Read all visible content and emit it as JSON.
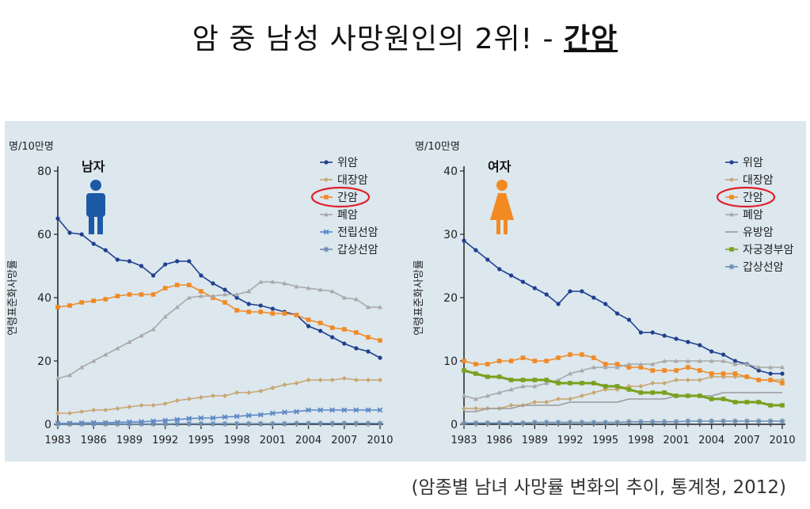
{
  "slide": {
    "title_prefix": "암 중 남성 사망원인의 2위! - ",
    "title_highlight": "간암",
    "source": "(암종별 남녀 사망률 변화의 추이, 통계청, 2012)"
  },
  "chart_data": [
    {
      "type": "line",
      "title": "남자",
      "unit_label": "명/10만명",
      "ylabel": "연령표준화사망률",
      "ylim": [
        0,
        80
      ],
      "yticks": [
        0,
        20,
        40,
        60,
        80
      ],
      "xlim": [
        1983,
        2010
      ],
      "xticks": [
        1983,
        1986,
        1989,
        1992,
        1995,
        1998,
        2001,
        2004,
        2007,
        2010
      ],
      "legend_position": "top-right",
      "highlight": "간암",
      "series": [
        {
          "name": "위암",
          "color": "#1f3f8f",
          "marker": "circle",
          "x": [
            1983,
            1984,
            1985,
            1986,
            1987,
            1988,
            1989,
            1990,
            1991,
            1992,
            1993,
            1994,
            1995,
            1996,
            1997,
            1998,
            1999,
            2000,
            2001,
            2002,
            2003,
            2004,
            2005,
            2006,
            2007,
            2008,
            2009,
            2010
          ],
          "values": [
            65,
            60.5,
            60,
            57,
            55,
            52,
            51.5,
            50,
            47,
            50.5,
            51.5,
            51.5,
            47,
            44.5,
            42.5,
            40,
            38,
            37.5,
            36.5,
            35.5,
            34.5,
            31,
            29.5,
            27.5,
            25.5,
            24,
            23,
            21
          ]
        },
        {
          "name": "대장암",
          "color": "#c8a670",
          "marker": "diamond",
          "x": [
            1983,
            1984,
            1985,
            1986,
            1987,
            1988,
            1989,
            1990,
            1991,
            1992,
            1993,
            1994,
            1995,
            1996,
            1997,
            1998,
            1999,
            2000,
            2001,
            2002,
            2003,
            2004,
            2005,
            2006,
            2007,
            2008,
            2009,
            2010
          ],
          "values": [
            3.5,
            3.5,
            4,
            4.5,
            4.5,
            5,
            5.5,
            6,
            6,
            6.5,
            7.5,
            8,
            8.5,
            9,
            9,
            10,
            10,
            10.5,
            11.5,
            12.5,
            13,
            14,
            14,
            14,
            14.5,
            14,
            14,
            14
          ]
        },
        {
          "name": "간암",
          "color": "#f08a24",
          "marker": "square",
          "x": [
            1983,
            1984,
            1985,
            1986,
            1987,
            1988,
            1989,
            1990,
            1991,
            1992,
            1993,
            1994,
            1995,
            1996,
            1997,
            1998,
            1999,
            2000,
            2001,
            2002,
            2003,
            2004,
            2005,
            2006,
            2007,
            2008,
            2009,
            2010
          ],
          "values": [
            37,
            37.5,
            38.5,
            39,
            39.5,
            40.5,
            41,
            41,
            41,
            43,
            44,
            44,
            42,
            40,
            38.5,
            36,
            35.5,
            35.5,
            35,
            35,
            34.5,
            33,
            32,
            30.5,
            30,
            29,
            27.5,
            26.5
          ]
        },
        {
          "name": "폐암",
          "color": "#a8a8a8",
          "marker": "triangle",
          "x": [
            1983,
            1984,
            1985,
            1986,
            1987,
            1988,
            1989,
            1990,
            1991,
            1992,
            1993,
            1994,
            1995,
            1996,
            1997,
            1998,
            1999,
            2000,
            2001,
            2002,
            2003,
            2004,
            2005,
            2006,
            2007,
            2008,
            2009,
            2010
          ],
          "values": [
            14.5,
            15.5,
            18,
            20,
            22,
            24,
            26,
            28,
            30,
            34,
            37,
            40,
            40.5,
            40.5,
            41,
            41,
            42,
            45,
            45,
            44.5,
            43.5,
            43,
            42.5,
            42,
            40,
            39.5,
            37,
            37
          ]
        },
        {
          "name": "전립선암",
          "color": "#5a86c6",
          "marker": "x",
          "x": [
            1983,
            1984,
            1985,
            1986,
            1987,
            1988,
            1989,
            1990,
            1991,
            1992,
            1993,
            1994,
            1995,
            1996,
            1997,
            1998,
            1999,
            2000,
            2001,
            2002,
            2003,
            2004,
            2005,
            2006,
            2007,
            2008,
            2009,
            2010
          ],
          "values": [
            0.3,
            0.3,
            0.4,
            0.5,
            0.5,
            0.6,
            0.7,
            0.8,
            1,
            1.2,
            1.5,
            1.8,
            2,
            2,
            2.3,
            2.5,
            2.8,
            3,
            3.5,
            3.8,
            4,
            4.5,
            4.5,
            4.5,
            4.5,
            4.5,
            4.5,
            4.5
          ]
        },
        {
          "name": "갑상선암",
          "color": "#6d8db0",
          "marker": "star",
          "x": [
            1983,
            1984,
            1985,
            1986,
            1987,
            1988,
            1989,
            1990,
            1991,
            1992,
            1993,
            1994,
            1995,
            1996,
            1997,
            1998,
            1999,
            2000,
            2001,
            2002,
            2003,
            2004,
            2005,
            2006,
            2007,
            2008,
            2009,
            2010
          ],
          "values": [
            0.1,
            0.1,
            0.1,
            0.1,
            0.1,
            0.1,
            0.1,
            0.1,
            0.1,
            0.1,
            0.2,
            0.2,
            0.2,
            0.2,
            0.2,
            0.2,
            0.2,
            0.2,
            0.2,
            0.2,
            0.3,
            0.3,
            0.3,
            0.3,
            0.3,
            0.3,
            0.3,
            0.3
          ]
        }
      ]
    },
    {
      "type": "line",
      "title": "여자",
      "unit_label": "명/10만명",
      "ylabel": "연령표준화사망률",
      "ylim": [
        0,
        40
      ],
      "yticks": [
        0,
        10,
        20,
        30,
        40
      ],
      "xlim": [
        1983,
        2010
      ],
      "xticks": [
        1983,
        1986,
        1989,
        1992,
        1995,
        1998,
        2001,
        2004,
        2007,
        2010
      ],
      "legend_position": "top-right",
      "highlight": "간암",
      "series": [
        {
          "name": "위암",
          "color": "#1f3f8f",
          "marker": "circle",
          "x": [
            1983,
            1984,
            1985,
            1986,
            1987,
            1988,
            1989,
            1990,
            1991,
            1992,
            1993,
            1994,
            1995,
            1996,
            1997,
            1998,
            1999,
            2000,
            2001,
            2002,
            2003,
            2004,
            2005,
            2006,
            2007,
            2008,
            2009,
            2010
          ],
          "values": [
            29,
            27.5,
            26,
            24.5,
            23.5,
            22.5,
            21.5,
            20.5,
            19,
            21,
            21,
            20,
            19,
            17.5,
            16.5,
            14.5,
            14.5,
            14,
            13.5,
            13,
            12.5,
            11.5,
            11,
            10,
            9.5,
            8.5,
            8,
            8
          ]
        },
        {
          "name": "대장암",
          "color": "#c8a670",
          "marker": "diamond",
          "x": [
            1983,
            1984,
            1985,
            1986,
            1987,
            1988,
            1989,
            1990,
            1991,
            1992,
            1993,
            1994,
            1995,
            1996,
            1997,
            1998,
            1999,
            2000,
            2001,
            2002,
            2003,
            2004,
            2005,
            2006,
            2007,
            2008,
            2009,
            2010
          ],
          "values": [
            2.5,
            2.5,
            2.5,
            2.5,
            3,
            3,
            3.5,
            3.5,
            4,
            4,
            4.5,
            5,
            5.5,
            5.5,
            6,
            6,
            6.5,
            6.5,
            7,
            7,
            7,
            7.5,
            7.5,
            7.5,
            7.5,
            7,
            7,
            7
          ]
        },
        {
          "name": "간암",
          "color": "#f08a24",
          "marker": "square",
          "x": [
            1983,
            1984,
            1985,
            1986,
            1987,
            1988,
            1989,
            1990,
            1991,
            1992,
            1993,
            1994,
            1995,
            1996,
            1997,
            1998,
            1999,
            2000,
            2001,
            2002,
            2003,
            2004,
            2005,
            2006,
            2007,
            2008,
            2009,
            2010
          ],
          "values": [
            10,
            9.5,
            9.5,
            10,
            10,
            10.5,
            10,
            10,
            10.5,
            11,
            11,
            10.5,
            9.5,
            9.5,
            9,
            9,
            8.5,
            8.5,
            8.5,
            9,
            8.5,
            8,
            8,
            8,
            7.5,
            7,
            7,
            6.5
          ]
        },
        {
          "name": "폐암",
          "color": "#a8a8a8",
          "marker": "triangle",
          "x": [
            1983,
            1984,
            1985,
            1986,
            1987,
            1988,
            1989,
            1990,
            1991,
            1992,
            1993,
            1994,
            1995,
            1996,
            1997,
            1998,
            1999,
            2000,
            2001,
            2002,
            2003,
            2004,
            2005,
            2006,
            2007,
            2008,
            2009,
            2010
          ],
          "values": [
            4.5,
            4,
            4.5,
            5,
            5.5,
            6,
            6,
            6.5,
            7,
            8,
            8.5,
            9,
            9,
            9,
            9.5,
            9.5,
            9.5,
            10,
            10,
            10,
            10,
            10,
            10,
            9.5,
            9.5,
            9,
            9,
            9
          ]
        },
        {
          "name": "유방암",
          "color": "#9a9a9a",
          "marker": "none",
          "x": [
            1983,
            1984,
            1985,
            1986,
            1987,
            1988,
            1989,
            1990,
            1991,
            1992,
            1993,
            1994,
            1995,
            1996,
            1997,
            1998,
            1999,
            2000,
            2001,
            2002,
            2003,
            2004,
            2005,
            2006,
            2007,
            2008,
            2009,
            2010
          ],
          "values": [
            2,
            2,
            2.5,
            2.5,
            2.5,
            3,
            3,
            3,
            3,
            3.5,
            3.5,
            3.5,
            3.5,
            3.5,
            4,
            4,
            4,
            4,
            4.5,
            4.5,
            4.5,
            4.5,
            5,
            5,
            5,
            5,
            5,
            5
          ]
        },
        {
          "name": "자궁경부암",
          "color": "#7aa11e",
          "marker": "square",
          "x": [
            1983,
            1984,
            1985,
            1986,
            1987,
            1988,
            1989,
            1990,
            1991,
            1992,
            1993,
            1994,
            1995,
            1996,
            1997,
            1998,
            1999,
            2000,
            2001,
            2002,
            2003,
            2004,
            2005,
            2006,
            2007,
            2008,
            2009,
            2010
          ],
          "values": [
            8.5,
            8,
            7.5,
            7.5,
            7,
            7,
            7,
            7,
            6.5,
            6.5,
            6.5,
            6.5,
            6,
            6,
            5.5,
            5,
            5,
            5,
            4.5,
            4.5,
            4.5,
            4,
            4,
            3.5,
            3.5,
            3.5,
            3,
            3
          ]
        },
        {
          "name": "갑상선암",
          "color": "#6d8db0",
          "marker": "star",
          "x": [
            1983,
            1984,
            1985,
            1986,
            1987,
            1988,
            1989,
            1990,
            1991,
            1992,
            1993,
            1994,
            1995,
            1996,
            1997,
            1998,
            1999,
            2000,
            2001,
            2002,
            2003,
            2004,
            2005,
            2006,
            2007,
            2008,
            2009,
            2010
          ],
          "values": [
            0.2,
            0.2,
            0.2,
            0.2,
            0.2,
            0.2,
            0.3,
            0.3,
            0.3,
            0.3,
            0.3,
            0.3,
            0.3,
            0.3,
            0.4,
            0.4,
            0.4,
            0.4,
            0.4,
            0.5,
            0.5,
            0.5,
            0.5,
            0.5,
            0.5,
            0.5,
            0.5,
            0.5
          ]
        }
      ]
    }
  ]
}
